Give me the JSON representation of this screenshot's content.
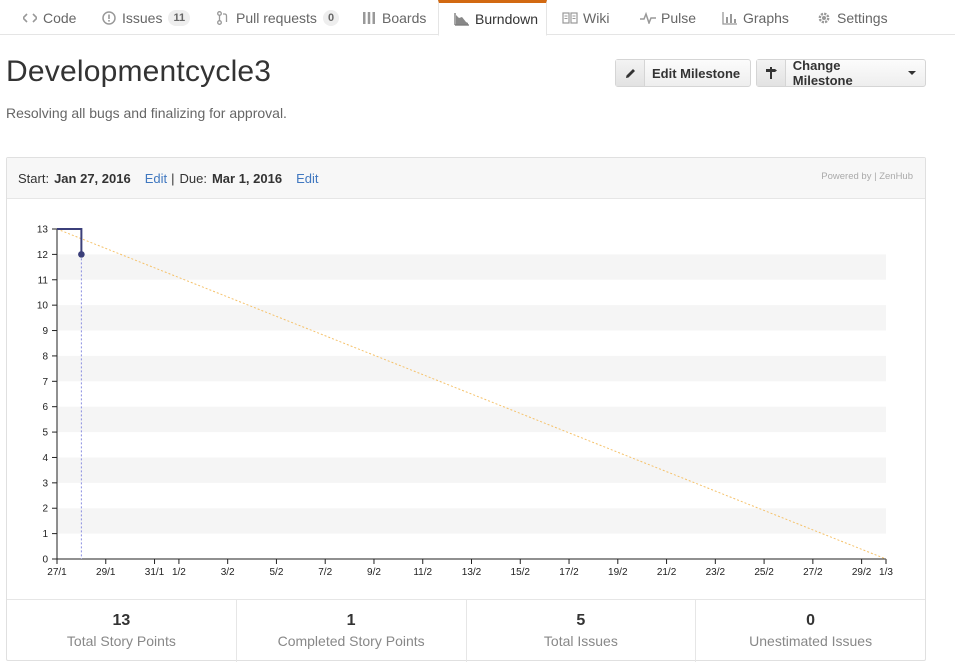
{
  "nav": {
    "tabs": [
      {
        "label": "Code",
        "icon": "code-icon"
      },
      {
        "label": "Issues",
        "icon": "issue-icon",
        "count": "11"
      },
      {
        "label": "Pull requests",
        "icon": "pull-request-icon",
        "count": "0"
      },
      {
        "label": "Boards",
        "icon": "boards-icon"
      },
      {
        "label": "Burndown",
        "icon": "burndown-icon",
        "active": true
      },
      {
        "label": "Wiki",
        "icon": "wiki-icon"
      },
      {
        "label": "Pulse",
        "icon": "pulse-icon"
      },
      {
        "label": "Graphs",
        "icon": "graph-icon"
      },
      {
        "label": "Settings",
        "icon": "gear-icon"
      }
    ]
  },
  "milestone": {
    "title": "Developmentcycle3",
    "description": "Resolving all bugs and finalizing for approval.",
    "edit_button": "Edit Milestone",
    "change_button": "Change Milestone"
  },
  "dates": {
    "start_label": "Start:",
    "start": "Jan 27, 2016",
    "edit1": "Edit",
    "sep": "|",
    "due_label": "Due:",
    "due": "Mar 1, 2016",
    "edit2": "Edit",
    "powered": "Powered by | ZenHub"
  },
  "chart_data": {
    "type": "line",
    "x": [
      "27/1",
      "29/1",
      "31/1",
      "1/2",
      "3/2",
      "5/2",
      "7/2",
      "9/2",
      "11/2",
      "13/2",
      "15/2",
      "17/2",
      "19/2",
      "21/2",
      "23/2",
      "25/2",
      "27/2",
      "29/2",
      "1/3"
    ],
    "ylim": [
      0,
      13
    ],
    "yticks": [
      0,
      1,
      2,
      3,
      4,
      5,
      6,
      7,
      8,
      9,
      10,
      11,
      12,
      13
    ],
    "series": [
      {
        "values": [
          {
            "x": "27/1",
            "y": 13
          },
          {
            "x": "28/1",
            "y": 13
          },
          {
            "x": "28/1",
            "y": 12
          }
        ],
        "color": "#3b3f7a"
      },
      {
        "values": [
          {
            "x": "27/1",
            "y": 13
          },
          {
            "x": "1/3",
            "y": 0
          }
        ],
        "color": "#f5c26b",
        "style": "dashed"
      }
    ],
    "marker": {
      "x": "28/1",
      "y": 12
    },
    "colors": {
      "actual": "#3b3f7a",
      "ideal": "#f5c26b",
      "band": "#f5f5f5",
      "guide": "#8a8ee0"
    }
  },
  "stats": [
    {
      "value": "13",
      "label": "Total Story Points"
    },
    {
      "value": "1",
      "label": "Completed Story Points"
    },
    {
      "value": "5",
      "label": "Total Issues"
    },
    {
      "value": "0",
      "label": "Unestimated Issues"
    }
  ]
}
